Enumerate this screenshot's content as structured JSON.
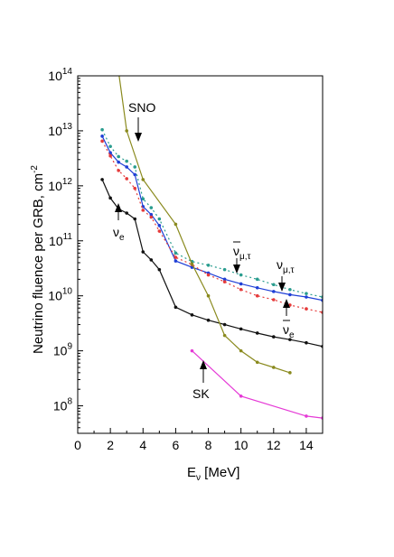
{
  "chart_data": {
    "type": "line",
    "xlabel_main": "E",
    "xlabel_sub": "ν",
    "xlabel_rest": " [MeV]",
    "ylabel_main": "Neutrino fluence per GRB, cm",
    "ylabel_sup": "-2",
    "xlim": [
      0,
      15
    ],
    "ylim_log10": [
      7.5,
      14
    ],
    "y_scale": "log",
    "x_ticks": [
      0,
      2,
      4,
      6,
      8,
      10,
      12,
      14
    ],
    "y_tick_labels": [
      {
        "exp": 8,
        "base": "10",
        "power": "8"
      },
      {
        "exp": 9,
        "base": "10",
        "power": "9"
      },
      {
        "exp": 10,
        "base": "10",
        "power": "10"
      },
      {
        "exp": 11,
        "base": "10",
        "power": "11"
      },
      {
        "exp": 12,
        "base": "10",
        "power": "12"
      },
      {
        "exp": 13,
        "base": "10",
        "power": "13"
      },
      {
        "exp": 14,
        "base": "10",
        "power": "14"
      }
    ],
    "series": [
      {
        "id": "nu_mu_tau",
        "color": "#2a9d8f",
        "dash": "2,3",
        "x": [
          1.5,
          2,
          2.5,
          3,
          3.5,
          4,
          4.5,
          5,
          6,
          7,
          8,
          9,
          10,
          11,
          12,
          13,
          14,
          15
        ],
        "y": [
          10500000000000.0,
          5200000000000.0,
          3400000000000.0,
          2800000000000.0,
          2200000000000.0,
          580000000000.0,
          400000000000.0,
          250000000000.0,
          60000000000.0,
          42000000000.0,
          36000000000.0,
          30000000000.0,
          24000000000.0,
          20000000000.0,
          16000000000.0,
          13000000000.0,
          11000000000.0,
          9500000000.0
        ]
      },
      {
        "id": "nu_bar_mu_tau",
        "color": "#1f3fd6",
        "dash": "",
        "x": [
          1.5,
          2,
          2.5,
          3,
          3.5,
          4,
          4.5,
          5,
          6,
          7,
          8,
          9,
          10,
          11,
          12,
          13,
          14,
          15
        ],
        "y": [
          8000000000000.0,
          4000000000000.0,
          2700000000000.0,
          2200000000000.0,
          1600000000000.0,
          420000000000.0,
          300000000000.0,
          190000000000.0,
          43000000000.0,
          33000000000.0,
          26000000000.0,
          20000000000.0,
          16500000000.0,
          14000000000.0,
          12000000000.0,
          10500000000.0,
          9500000000.0,
          8300000000.0
        ]
      },
      {
        "id": "nu_bar_e",
        "color": "#e53a3a",
        "dash": "2,3",
        "x": [
          1.5,
          2,
          2.5,
          3,
          3.5,
          4,
          4.5,
          5,
          6,
          7,
          8,
          9,
          10,
          11,
          12,
          13,
          14,
          15
        ],
        "y": [
          6500000000000.0,
          3500000000000.0,
          1900000000000.0,
          1350000000000.0,
          900000000000.0,
          360000000000.0,
          270000000000.0,
          150000000000.0,
          50000000000.0,
          37000000000.0,
          24000000000.0,
          18000000000.0,
          13000000000.0,
          10000000000.0,
          8500000000.0,
          6800000000.0,
          5800000000.0,
          5000000000.0
        ]
      },
      {
        "id": "nu_e",
        "color": "#111111",
        "dash": "",
        "x": [
          1.5,
          2,
          2.5,
          3,
          3.5,
          4,
          4.5,
          5,
          6,
          7,
          8,
          9,
          10,
          11,
          12,
          13,
          14,
          15
        ],
        "y": [
          1300000000000.0,
          600000000000.0,
          380000000000.0,
          320000000000.0,
          250000000000.0,
          63000000000.0,
          45000000000.0,
          30000000000.0,
          6200000000.0,
          4500000000.0,
          3600000000.0,
          3000000000.0,
          2500000000.0,
          2100000000.0,
          1800000000.0,
          1600000000.0,
          1400000000.0,
          1200000000.0
        ]
      },
      {
        "id": "sno",
        "color": "#8a8a1e",
        "dash": "",
        "x": [
          2.5,
          3,
          4,
          6,
          7,
          8,
          9,
          10,
          11,
          12,
          13
        ],
        "y": [
          120000000000000.0,
          10000000000000.0,
          1300000000000.0,
          200000000000.0,
          38000000000.0,
          10000000000.0,
          1900000000.0,
          1000000000.0,
          620000000.0,
          500000000.0,
          400000000.0
        ]
      },
      {
        "id": "sk",
        "color": "#e53ad6",
        "dash": "",
        "x": [
          7,
          10,
          14,
          15
        ],
        "y": [
          1000000000.0,
          150000000.0,
          65000000.0,
          60000000.0
        ]
      }
    ],
    "annotations": {
      "sno_label": "SNO",
      "sk_label": "SK",
      "nu_e_label": "ν",
      "nu_e_sub": "e",
      "nu_bar_mu_tau_label": "ν",
      "nu_bar_mu_tau_sub": "μ,τ",
      "nu_mu_tau_label": "ν",
      "nu_mu_tau_sub": "μ,τ",
      "nu_bar_e_label": "ν",
      "nu_bar_e_sub": "e"
    }
  }
}
